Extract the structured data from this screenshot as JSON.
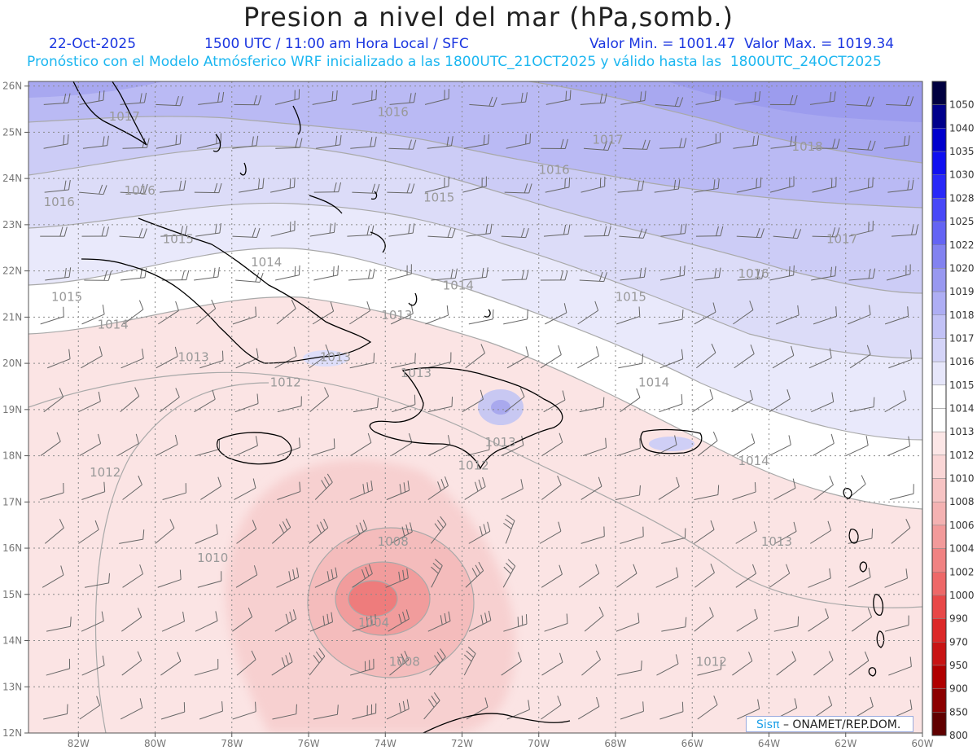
{
  "header": {
    "title": "Presion a nivel del mar (hPa,somb.)",
    "date": "22-Oct-2025",
    "time": "1500 UTC / 11:00 am Hora Local / SFC",
    "min_max": "Valor Min. = 1001.47  Valor Max. = 1019.34",
    "model_line": "Pronóstico con el Modelo Atmósferico WRF inicializado a las 1800UTC_21OCT2025 y válido hasta las  1800UTC_24OCT2025"
  },
  "axes": {
    "lat_labels": [
      "26N",
      "25N",
      "24N",
      "23N",
      "22N",
      "21N",
      "20N",
      "19N",
      "18N",
      "17N",
      "16N",
      "15N",
      "14N",
      "13N",
      "12N"
    ],
    "lon_labels": [
      "82W",
      "80W",
      "78W",
      "76W",
      "74W",
      "72W",
      "70W",
      "68W",
      "66W",
      "64W",
      "62W",
      "60W"
    ]
  },
  "contour_labels": [
    {
      "t": "1017",
      "lon": -80.8,
      "lat": 25.25
    },
    {
      "t": "1016",
      "lon": -73.8,
      "lat": 25.35
    },
    {
      "t": "1017",
      "lon": -68.2,
      "lat": 24.75
    },
    {
      "t": "1018",
      "lon": -63.0,
      "lat": 24.6
    },
    {
      "t": "1016",
      "lon": -82.5,
      "lat": 23.4
    },
    {
      "t": "1016",
      "lon": -80.4,
      "lat": 23.65
    },
    {
      "t": "1015",
      "lon": -72.6,
      "lat": 23.5
    },
    {
      "t": "1016",
      "lon": -69.6,
      "lat": 24.1
    },
    {
      "t": "1015",
      "lon": -79.4,
      "lat": 22.6
    },
    {
      "t": "1014",
      "lon": -77.1,
      "lat": 22.1
    },
    {
      "t": "1017",
      "lon": -62.1,
      "lat": 22.6
    },
    {
      "t": "1014",
      "lon": -72.1,
      "lat": 21.6
    },
    {
      "t": "1016",
      "lon": -64.4,
      "lat": 21.85
    },
    {
      "t": "1015",
      "lon": -82.3,
      "lat": 21.35
    },
    {
      "t": "1015",
      "lon": -67.6,
      "lat": 21.35
    },
    {
      "t": "1013",
      "lon": -73.7,
      "lat": 20.95
    },
    {
      "t": "1014",
      "lon": -81.1,
      "lat": 20.75
    },
    {
      "t": "1013",
      "lon": -79.0,
      "lat": 20.05
    },
    {
      "t": "1013",
      "lon": -75.3,
      "lat": 20.05
    },
    {
      "t": "1012",
      "lon": -76.6,
      "lat": 19.5
    },
    {
      "t": "1013",
      "lon": -73.2,
      "lat": 19.7
    },
    {
      "t": "1014",
      "lon": -67.0,
      "lat": 19.5
    },
    {
      "t": "1013",
      "lon": -71.0,
      "lat": 18.2
    },
    {
      "t": "1012",
      "lon": -71.7,
      "lat": 17.7
    },
    {
      "t": "1014",
      "lon": -64.4,
      "lat": 17.8
    },
    {
      "t": "1012",
      "lon": -81.3,
      "lat": 17.55
    },
    {
      "t": "1013",
      "lon": -63.8,
      "lat": 16.05
    },
    {
      "t": "1010",
      "lon": -78.5,
      "lat": 15.7
    },
    {
      "t": "1008",
      "lon": -73.8,
      "lat": 16.05
    },
    {
      "t": "1004",
      "lon": -74.3,
      "lat": 14.3
    },
    {
      "t": "1008",
      "lon": -73.5,
      "lat": 13.45
    },
    {
      "t": "1012",
      "lon": -65.5,
      "lat": 13.45
    }
  ],
  "colorbar": {
    "levels": [
      "1050",
      "1040",
      "1035",
      "1030",
      "1028",
      "1025",
      "1022",
      "1020",
      "1019",
      "1018",
      "1017",
      "1016",
      "1015",
      "1014",
      "1013",
      "1012",
      "1010",
      "1008",
      "1006",
      "1004",
      "1002",
      "1000",
      "990",
      "970",
      "950",
      "900",
      "850",
      "800"
    ],
    "colors": [
      "#000040",
      "#00008b",
      "#0000cd",
      "#1010f0",
      "#2828f8",
      "#4848f8",
      "#6464f4",
      "#8282f0",
      "#9898f0",
      "#aeaef4",
      "#c2c2f6",
      "#d4d4f8",
      "#e6e6fa",
      "#ffffff",
      "#ffffff",
      "#fce6e6",
      "#fad6d6",
      "#f7c4c4",
      "#f4b2b2",
      "#f29a9a",
      "#f08282",
      "#ee6868",
      "#e84848",
      "#dc2828",
      "#c81414",
      "#b00000",
      "#8c0000",
      "#600000"
    ]
  },
  "credit": {
    "brand": "Sisπ",
    "text": "– ONAMET/REP.DOM."
  }
}
